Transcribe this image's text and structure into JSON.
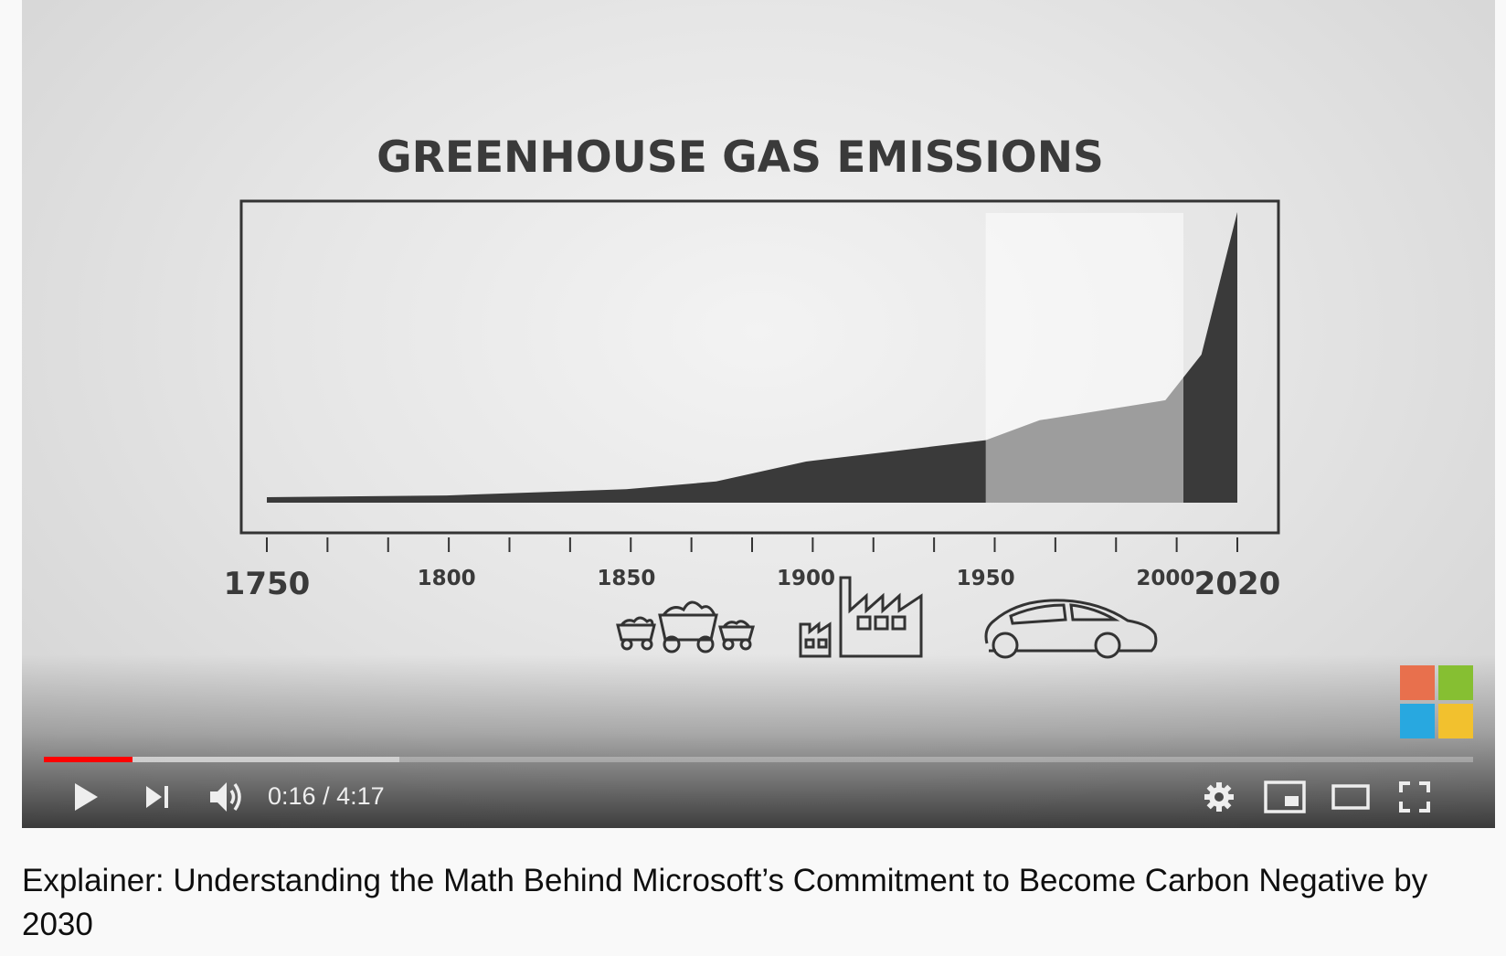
{
  "video": {
    "frame": {
      "heading": "GREENHOUSE GAS EMISSIONS",
      "chart_data": {
        "type": "area",
        "title": "GREENHOUSE GAS EMISSIONS",
        "x": [
          1750,
          1800,
          1850,
          1875,
          1900,
          1950,
          1965,
          2000,
          2010,
          2020
        ],
        "values": [
          0,
          0.6,
          2.8,
          5.5,
          12.5,
          20,
          27,
          34,
          50,
          100
        ],
        "xlim": [
          1750,
          2020
        ],
        "x_ticks": [
          1750,
          1800,
          1850,
          1900,
          1950,
          2000,
          2020
        ],
        "highlight_range": [
          1950,
          2005
        ],
        "illustrations": [
          "coal-carts-icon",
          "factory-icon",
          "car-icon"
        ]
      }
    },
    "brand_logo": {
      "name": "microsoft-logo",
      "colors": [
        "#f25022",
        "#7fba00",
        "#00a4ef",
        "#ffb900"
      ]
    }
  },
  "player": {
    "time_current": "0:16",
    "time_separator": " / ",
    "time_total": "4:17",
    "progress_played": 0.062,
    "progress_loaded": 0.249,
    "accent_color": "#ff0000",
    "controls": [
      "play-icon",
      "next-icon",
      "volume-icon",
      "settings-icon",
      "miniplayer-icon",
      "theater-icon",
      "fullscreen-icon"
    ]
  },
  "title": "Explainer: Understanding the Math Behind Microsoft’s Commitment to Become Carbon Negative by 2030"
}
